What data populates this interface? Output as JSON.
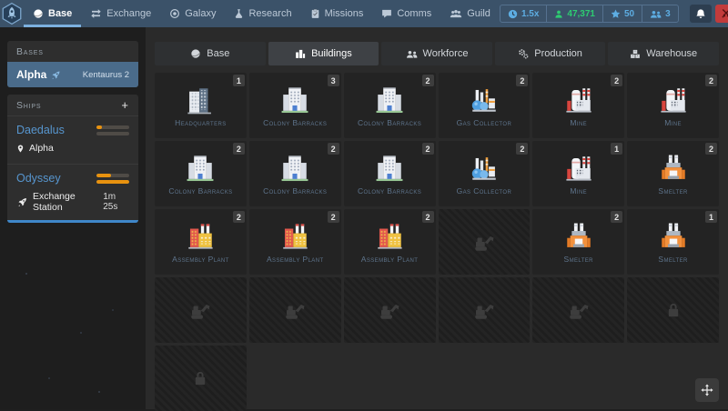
{
  "colors": {
    "navbar_bg": "#3b5269",
    "accent_blue": "#5dade2",
    "green": "#2ecc71",
    "orange": "#e8920f",
    "progress_blue": "#3f87c9",
    "alert_red": "#c23b3b",
    "selected_base_bg": "#4a6b8a",
    "building_name_text": "#5e748c"
  },
  "navbar": {
    "logo_icon": "rocket-logo",
    "items": [
      {
        "label": "Base",
        "icon": "planet",
        "active": true
      },
      {
        "label": "Exchange",
        "icon": "exchange",
        "active": false
      },
      {
        "label": "Galaxy",
        "icon": "galaxy",
        "active": false
      },
      {
        "label": "Research",
        "icon": "research",
        "active": false
      },
      {
        "label": "Missions",
        "icon": "missions",
        "active": false
      },
      {
        "label": "Comms",
        "icon": "comms",
        "active": false
      },
      {
        "label": "Guild",
        "icon": "guild",
        "active": false
      }
    ],
    "stats": [
      {
        "icon": "clock",
        "value": "1.5x",
        "color": "#5dade2"
      },
      {
        "icon": "worker",
        "value": "47,371",
        "color": "#2ecc71"
      },
      {
        "icon": "star",
        "value": "50",
        "color": "#5dade2"
      },
      {
        "icon": "people",
        "value": "3",
        "color": "#5dade2"
      }
    ],
    "bell_icon": "bell",
    "alert_icon": "combat"
  },
  "sidebar": {
    "bases": {
      "header": "Bases",
      "items": [
        {
          "name": "Alpha",
          "icon": "rocket-small",
          "system": "Kentaurus 2",
          "selected": true
        }
      ]
    },
    "ships": {
      "header": "Ships",
      "add_label": "+",
      "items": [
        {
          "name": "Daedalus",
          "location": "Alpha",
          "location_icon": "pin",
          "eta": "",
          "bars": [
            18,
            0
          ],
          "progress": null
        },
        {
          "name": "Odyssey",
          "location": "Exchange Station",
          "location_icon": "ship",
          "eta": "1m 25s",
          "bars": [
            45,
            100
          ],
          "progress": 100
        }
      ]
    }
  },
  "tabs": [
    {
      "label": "Base",
      "icon": "planet",
      "active": false
    },
    {
      "label": "Buildings",
      "icon": "buildings",
      "active": true
    },
    {
      "label": "Workforce",
      "icon": "workforce",
      "active": false
    },
    {
      "label": "Production",
      "icon": "production",
      "active": false
    },
    {
      "label": "Warehouse",
      "icon": "warehouse",
      "active": false
    }
  ],
  "grid": {
    "columns": 6,
    "cells": [
      {
        "type": "building",
        "icon": "headquarters",
        "name": "Headquarters",
        "count": "1"
      },
      {
        "type": "building",
        "icon": "barracks",
        "name": "Colony Barracks",
        "count": "3"
      },
      {
        "type": "building",
        "icon": "barracks",
        "name": "Colony Barracks",
        "count": "2"
      },
      {
        "type": "building",
        "icon": "gas-collector",
        "name": "Gas Collector",
        "count": "2"
      },
      {
        "type": "building",
        "icon": "mine",
        "name": "Mine",
        "count": "2"
      },
      {
        "type": "building",
        "icon": "mine",
        "name": "Mine",
        "count": "2"
      },
      {
        "type": "building",
        "icon": "barracks",
        "name": "Colony Barracks",
        "count": "2"
      },
      {
        "type": "building",
        "icon": "barracks",
        "name": "Colony Barracks",
        "count": "2"
      },
      {
        "type": "building",
        "icon": "barracks",
        "name": "Colony Barracks",
        "count": "2"
      },
      {
        "type": "building",
        "icon": "gas-collector",
        "name": "Gas Collector",
        "count": "2"
      },
      {
        "type": "building",
        "icon": "mine",
        "name": "Mine",
        "count": "1"
      },
      {
        "type": "building",
        "icon": "smelter",
        "name": "Smelter",
        "count": "2"
      },
      {
        "type": "building",
        "icon": "assembly-plant",
        "name": "Assembly Plant",
        "count": "2"
      },
      {
        "type": "building",
        "icon": "assembly-plant",
        "name": "Assembly Plant",
        "count": "2"
      },
      {
        "type": "building",
        "icon": "assembly-plant",
        "name": "Assembly Plant",
        "count": "2"
      },
      {
        "type": "buildable",
        "icon": "excavator"
      },
      {
        "type": "building",
        "icon": "smelter",
        "name": "Smelter",
        "count": "2"
      },
      {
        "type": "building",
        "icon": "smelter",
        "name": "Smelter",
        "count": "1"
      },
      {
        "type": "buildable",
        "icon": "excavator"
      },
      {
        "type": "buildable",
        "icon": "excavator"
      },
      {
        "type": "buildable",
        "icon": "excavator"
      },
      {
        "type": "buildable",
        "icon": "excavator"
      },
      {
        "type": "buildable",
        "icon": "excavator"
      },
      {
        "type": "locked",
        "icon": "lock"
      },
      {
        "type": "locked",
        "icon": "lock"
      }
    ]
  },
  "move_button_icon": "move"
}
